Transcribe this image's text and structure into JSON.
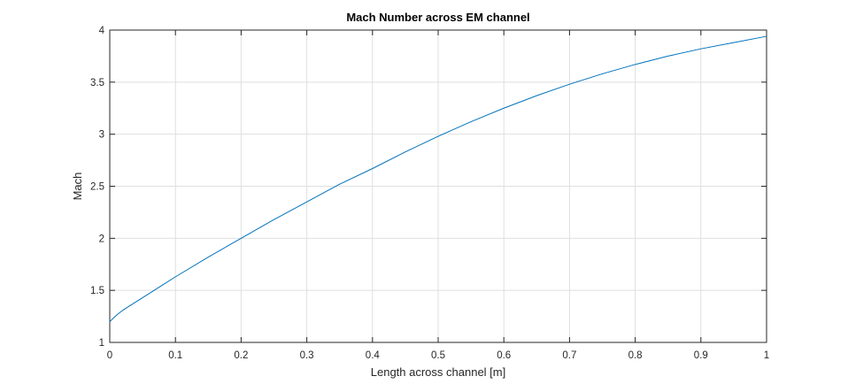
{
  "chart_data": {
    "type": "line",
    "title": "Mach Number across EM channel",
    "xlabel": "Length across channel [m]",
    "ylabel": "Mach",
    "xlim": [
      0,
      1
    ],
    "ylim": [
      1,
      4
    ],
    "xticks": [
      "0",
      "0.1",
      "0.2",
      "0.3",
      "0.4",
      "0.5",
      "0.6",
      "0.7",
      "0.8",
      "0.9",
      "1"
    ],
    "yticks": [
      "1",
      "1.5",
      "2",
      "2.5",
      "3",
      "3.5",
      "4"
    ],
    "grid": true,
    "series": [
      {
        "color": "#0072BD",
        "x": [
          0,
          0.01,
          0.02,
          0.03,
          0.05,
          0.08,
          0.1,
          0.15,
          0.2,
          0.25,
          0.3,
          0.35,
          0.4,
          0.45,
          0.5,
          0.55,
          0.6,
          0.65,
          0.7,
          0.75,
          0.8,
          0.85,
          0.9,
          0.95,
          1.0
        ],
        "y": [
          1.2,
          1.26,
          1.31,
          1.35,
          1.43,
          1.55,
          1.63,
          1.82,
          2.0,
          2.18,
          2.35,
          2.52,
          2.67,
          2.83,
          2.98,
          3.12,
          3.25,
          3.37,
          3.48,
          3.58,
          3.67,
          3.75,
          3.82,
          3.88,
          3.94
        ]
      }
    ]
  }
}
